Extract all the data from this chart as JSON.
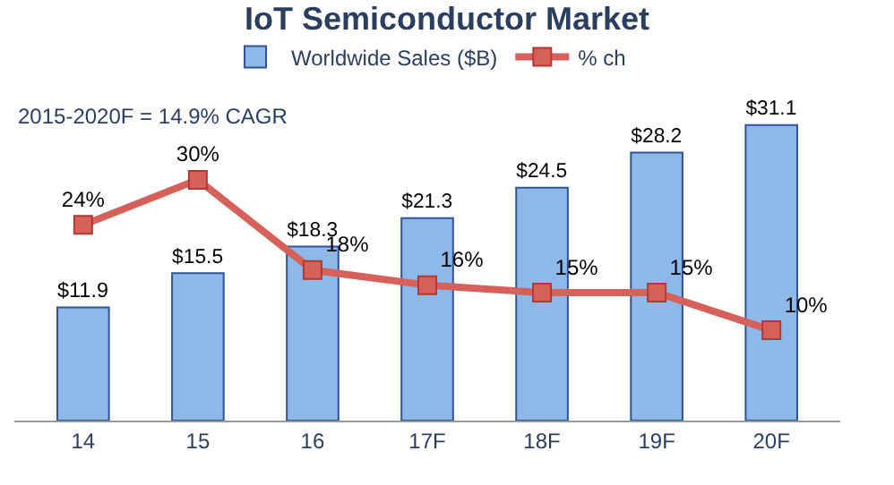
{
  "chart_data": {
    "type": "bar",
    "title": "IoT Semiconductor Market",
    "categories": [
      "14",
      "15",
      "16",
      "17F",
      "18F",
      "19F",
      "20F"
    ],
    "series": [
      {
        "name": "Worldwide Sales ($B)",
        "color": "#8db8e8",
        "values": [
          11.9,
          15.5,
          18.3,
          21.3,
          24.5,
          28.2,
          31.1
        ],
        "value_labels": [
          "$11.9",
          "$15.5",
          "$18.3",
          "$21.3",
          "$24.5",
          "$28.2",
          "$31.1"
        ]
      },
      {
        "name": "% ch",
        "type": "line",
        "axis": "y2",
        "color": "#d6605a",
        "marker": "square",
        "values": [
          24,
          30,
          18,
          16,
          15,
          15,
          10
        ],
        "value_labels": [
          "24%",
          "30%",
          "18%",
          "16%",
          "15%",
          "15%",
          "10%"
        ]
      }
    ],
    "annotations": [
      "2015-2020F = 14.9% CAGR"
    ],
    "legend": "top",
    "tick_labels": "x"
  }
}
